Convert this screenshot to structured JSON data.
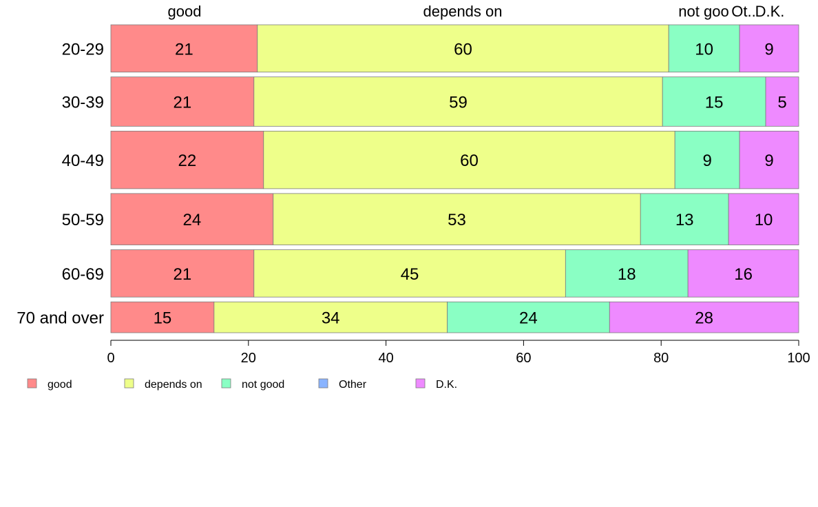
{
  "chart_data": {
    "type": "bar",
    "orientation": "horizontal",
    "stacked": true,
    "percent": true,
    "title": "",
    "xlabel": "",
    "ylabel": "",
    "xlim": [
      0,
      100
    ],
    "x_ticks": [
      "0",
      "20",
      "40",
      "60",
      "80",
      "100"
    ],
    "grid": false,
    "legend_position": "bottom-left",
    "categories": [
      "20-29",
      "30-39",
      "40-49",
      "50-59",
      "60-69",
      "70 and over"
    ],
    "row_weights": [
      4.6,
      4.8,
      5.6,
      5.0,
      4.6,
      3.0
    ],
    "top_labels": [
      "good",
      "depends on",
      "not goo",
      "Ot..",
      "D.K."
    ],
    "series": [
      {
        "name": "good",
        "color": "#FF8A8A",
        "values": [
          21.3,
          20.8,
          22.2,
          23.6,
          20.8,
          15.0
        ],
        "labels": [
          "21",
          "21",
          "22",
          "24",
          "21",
          "15"
        ]
      },
      {
        "name": "depends on",
        "color": "#EEFF8A",
        "values": [
          59.8,
          59.4,
          59.8,
          53.4,
          45.3,
          33.9
        ],
        "labels": [
          "60",
          "59",
          "60",
          "53",
          "45",
          "34"
        ]
      },
      {
        "name": "not good",
        "color": "#8AFFC4",
        "values": [
          10.3,
          15.0,
          9.4,
          12.8,
          17.8,
          23.6
        ],
        "labels": [
          "10",
          "15",
          "9",
          "13",
          "18",
          "24"
        ]
      },
      {
        "name": "Other",
        "color": "#8AB4FF",
        "values": [
          0,
          0,
          0,
          0,
          0,
          0
        ],
        "labels": [
          "",
          "",
          "",
          "",
          "",
          ""
        ]
      },
      {
        "name": "D.K.",
        "color": "#EE8AFF",
        "values": [
          8.6,
          4.8,
          8.6,
          10.2,
          16.1,
          27.5
        ],
        "labels": [
          "9",
          "5",
          "9",
          "10",
          "16",
          "28"
        ]
      }
    ]
  }
}
